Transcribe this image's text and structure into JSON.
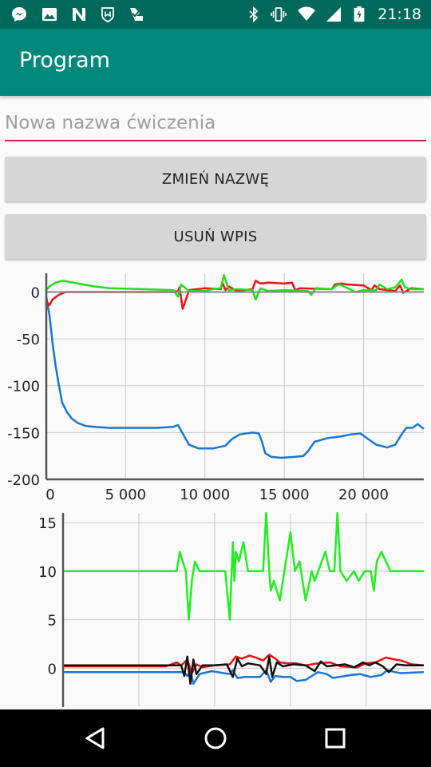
{
  "status_bar": {
    "time": "21:18",
    "left_icons": [
      "messenger-icon",
      "image-icon",
      "n-app-icon",
      "shield-app-icon",
      "check-app-icon"
    ],
    "right_icons": [
      "bluetooth-icon",
      "vibrate-icon",
      "wifi-icon",
      "signal-icon",
      "battery-icon"
    ]
  },
  "app_bar": {
    "title": "Program"
  },
  "form": {
    "name_placeholder": "Nowa nazwa ćwiczenia",
    "rename_label": "ZMIEŃ NAZWĘ",
    "delete_label": "USUŃ WPIS"
  },
  "colors": {
    "appbar": "#00897b",
    "statusbar": "#00695c",
    "accent": "#d81b60"
  },
  "chart_data": [
    {
      "type": "line",
      "grid": true,
      "xlim": [
        0,
        23800
      ],
      "ylim": [
        -200,
        20
      ],
      "xticks": [
        0,
        5000,
        10000,
        15000,
        20000
      ],
      "xtick_labels": [
        "0",
        "5 000",
        "10 000",
        "15 000",
        "20 000"
      ],
      "yticks": [
        0,
        -50,
        -100,
        -150,
        -200
      ],
      "ytick_labels": [
        "0",
        "-50",
        "-100",
        "-150",
        "-200"
      ],
      "series": [
        {
          "color": "#1976d2",
          "x": [
            0,
            200,
            400,
            600,
            800,
            1000,
            1300,
            1600,
            2000,
            2500,
            3000,
            4000,
            5000,
            6000,
            7000,
            8000,
            8300,
            8500,
            8800,
            9000,
            9600,
            10500,
            11300,
            11700,
            12200,
            13000,
            13400,
            13600,
            13800,
            14200,
            14800,
            15600,
            16200,
            16500,
            16900,
            17700,
            18600,
            19200,
            19800,
            20300,
            20800,
            21500,
            22000,
            22400,
            22700,
            23100,
            23400,
            23800
          ],
          "y": [
            -5,
            -25,
            -55,
            -80,
            -100,
            -118,
            -128,
            -135,
            -140,
            -143,
            -144,
            -145,
            -145,
            -145,
            -145,
            -144,
            -142,
            -148,
            -157,
            -163,
            -167,
            -167,
            -164,
            -157,
            -152,
            -150,
            -151,
            -160,
            -172,
            -176,
            -177,
            -176,
            -175,
            -170,
            -160,
            -156,
            -154,
            -152,
            -151,
            -157,
            -163,
            -166,
            -163,
            -152,
            -145,
            -145,
            -141,
            -146
          ]
        },
        {
          "color": "#ee1111",
          "x": [
            0,
            200,
            400,
            800,
            1200,
            2000,
            4000,
            8000,
            8300,
            8400,
            8600,
            9000,
            10000,
            11000,
            11100,
            11300,
            11500,
            12000,
            13000,
            13200,
            13500,
            14000,
            15000,
            15500,
            15700,
            16000,
            18000,
            18200,
            18600,
            19000,
            20000,
            20500,
            20700,
            21000,
            22000,
            22300,
            22500,
            23000,
            23800
          ],
          "y": [
            -10,
            -14,
            -8,
            -3,
            0,
            0,
            0,
            0,
            1,
            5,
            -18,
            2,
            4,
            3,
            10,
            2,
            6,
            1,
            3,
            12,
            9,
            10,
            9,
            10,
            2,
            4,
            3,
            8,
            9,
            8,
            7,
            2,
            7,
            3,
            1,
            7,
            -1,
            4,
            3
          ]
        },
        {
          "color": "#22dd22",
          "x": [
            0,
            200,
            600,
            1000,
            1400,
            2000,
            3000,
            4000,
            6000,
            8000,
            8300,
            8500,
            9000,
            10000,
            10500,
            11000,
            11200,
            11500,
            12000,
            13000,
            13200,
            13500,
            14000,
            15000,
            16500,
            16700,
            17000,
            18000,
            18300,
            18500,
            19000,
            19500,
            20000,
            20800,
            21000,
            21500,
            22000,
            22400,
            22600,
            23000,
            23800
          ],
          "y": [
            2,
            6,
            10,
            12,
            11,
            9,
            6,
            4,
            3,
            2,
            -5,
            8,
            1,
            1,
            3,
            4,
            18,
            2,
            3,
            2,
            -8,
            4,
            1,
            2,
            1,
            -3,
            4,
            3,
            7,
            8,
            4,
            0,
            2,
            2,
            8,
            3,
            5,
            13,
            5,
            3,
            3
          ]
        }
      ]
    },
    {
      "type": "line",
      "grid": true,
      "xlim": [
        0,
        23800
      ],
      "ylim": [
        -4,
        16
      ],
      "yticks": [
        15,
        10,
        5,
        0
      ],
      "ytick_labels": [
        "15",
        "10",
        "5",
        "0"
      ],
      "xticks": [
        0,
        5000,
        10000,
        15000,
        20000
      ],
      "series": [
        {
          "color": "#22ee22",
          "x": [
            0,
            2000,
            4000,
            6000,
            7500,
            7700,
            7900,
            8100,
            8300,
            8500,
            8700,
            9000,
            9600,
            10200,
            10700,
            11000,
            11200,
            11300,
            11400,
            11600,
            11900,
            12200,
            12600,
            13200,
            13400,
            13600,
            13700,
            13900,
            14300,
            14600,
            15000,
            15300,
            15600,
            16000,
            16400,
            16600,
            17300,
            17600,
            17900,
            18100,
            18300,
            18700,
            19200,
            19500,
            19900,
            20300,
            20500,
            20700,
            21000,
            21600,
            22000,
            23800
          ],
          "y": [
            10,
            10,
            10,
            10,
            10,
            12,
            11,
            10,
            5,
            9,
            11,
            10,
            10,
            10,
            10,
            5,
            13,
            9,
            12,
            11,
            13,
            10,
            10,
            10,
            16,
            10,
            8,
            9,
            7,
            10,
            14,
            10,
            11,
            7,
            10,
            9,
            12,
            10,
            10,
            16,
            10,
            9,
            10,
            9,
            10,
            10,
            8,
            11,
            12,
            10,
            10,
            10
          ]
        },
        {
          "color": "#1976d2",
          "x": [
            0,
            7200,
            8000,
            8200,
            8400,
            8600,
            9000,
            9800,
            10600,
            11000,
            11200,
            11500,
            12000,
            13000,
            13400,
            13700,
            14000,
            14500,
            15000,
            15400,
            16000,
            16800,
            17400,
            17800,
            18200,
            19000,
            19600,
            20300,
            21000,
            21400,
            21900,
            22300,
            23800
          ],
          "y": [
            -0.4,
            -0.4,
            -0.4,
            -0.8,
            -0.3,
            -1.6,
            -0.6,
            -0.3,
            -0.5,
            -0.6,
            -0.2,
            -1.0,
            -0.9,
            -0.9,
            -0.2,
            -1.4,
            -0.8,
            -0.9,
            -0.9,
            -1.3,
            -1.2,
            -0.4,
            -0.6,
            -1.0,
            -0.9,
            -0.7,
            -0.6,
            -0.9,
            -0.7,
            -0.2,
            -0.4,
            -0.5,
            -0.4
          ]
        },
        {
          "color": "#ee1111",
          "x": [
            0,
            6800,
            7500,
            7800,
            8200,
            8500,
            8800,
            9200,
            10000,
            11000,
            11400,
            11800,
            12300,
            12700,
            13200,
            13600,
            14000,
            14300,
            14800,
            15400,
            16000,
            16800,
            17600,
            18300,
            19400,
            20000,
            20600,
            21300,
            21900,
            22300,
            23000,
            23800
          ],
          "y": [
            0.2,
            0.2,
            0.6,
            0.3,
            0.9,
            -0.5,
            0.4,
            0.1,
            0.3,
            0.4,
            1.2,
            1.0,
            1.3,
            1.1,
            0.8,
            1.4,
            1.0,
            0.6,
            0.5,
            0.5,
            0.3,
            0.5,
            0.6,
            0.2,
            0.1,
            0.5,
            0.6,
            1.1,
            0.9,
            0.8,
            0.4,
            0.3
          ]
        },
        {
          "color": "#111111",
          "x": [
            0,
            7000,
            7800,
            8000,
            8200,
            8400,
            8600,
            8800,
            9200,
            10000,
            10800,
            11200,
            11500,
            11800,
            12200,
            13000,
            13400,
            13600,
            13800,
            14100,
            14500,
            15200,
            16000,
            16600,
            17000,
            17400,
            18000,
            18600,
            19200,
            19800,
            20200,
            20600,
            21100,
            21500,
            22000,
            22600,
            23200,
            23800
          ],
          "y": [
            0.3,
            0.3,
            0.3,
            -0.8,
            1.2,
            -1.6,
            0.9,
            -0.6,
            0.3,
            0.3,
            0.4,
            -0.9,
            1.0,
            0.2,
            0.5,
            0.3,
            -0.6,
            1.2,
            -0.9,
            0.6,
            0.2,
            0.4,
            0.3,
            -0.3,
            0.7,
            0.2,
            0.3,
            0.4,
            0.1,
            0.6,
            0.3,
            0.6,
            0.2,
            -0.4,
            0.4,
            0.3,
            0.3,
            0.3
          ]
        }
      ]
    }
  ]
}
